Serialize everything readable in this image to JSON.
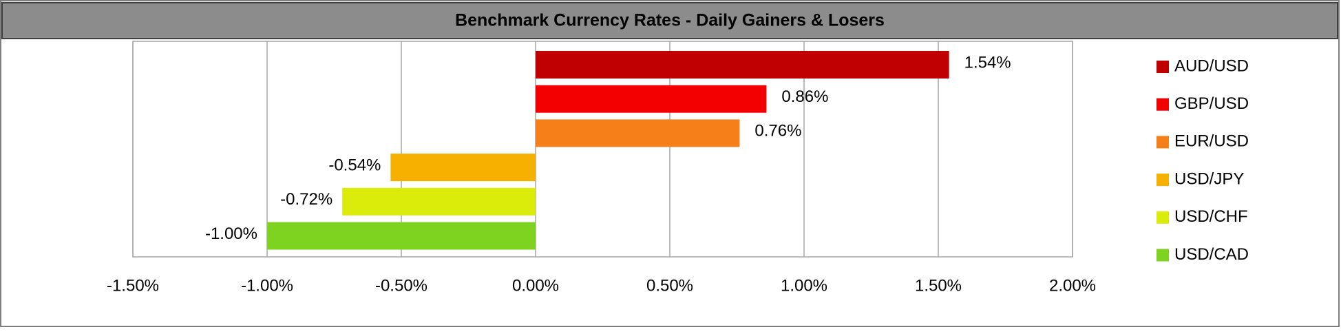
{
  "chart_data": {
    "type": "bar",
    "orientation": "horizontal",
    "title": "Benchmark Currency Rates - Daily Gainers & Losers",
    "categories": [
      "AUD/USD",
      "GBP/USD",
      "EUR/USD",
      "USD/JPY",
      "USD/CHF",
      "USD/CAD"
    ],
    "values": [
      1.54,
      0.86,
      0.76,
      -0.54,
      -0.72,
      -1.0
    ],
    "value_labels": [
      "1.54%",
      "0.86%",
      "0.76%",
      "-0.54%",
      "-0.72%",
      "-1.00%"
    ],
    "colors": [
      "#c00000",
      "#f20000",
      "#f5801a",
      "#f5b000",
      "#dcec0a",
      "#7ed321"
    ],
    "xlim": [
      -1.5,
      2.0
    ],
    "xticks": [
      {
        "value": -1.5,
        "label": "-1.50%"
      },
      {
        "value": -1.0,
        "label": "-1.00%"
      },
      {
        "value": -0.5,
        "label": "-0.50%"
      },
      {
        "value": 0.0,
        "label": "0.00%"
      },
      {
        "value": 0.5,
        "label": "0.50%"
      },
      {
        "value": 1.0,
        "label": "1.00%"
      },
      {
        "value": 1.5,
        "label": "1.50%"
      },
      {
        "value": 2.0,
        "label": "2.00%"
      }
    ],
    "grid": true,
    "legend": "right"
  }
}
